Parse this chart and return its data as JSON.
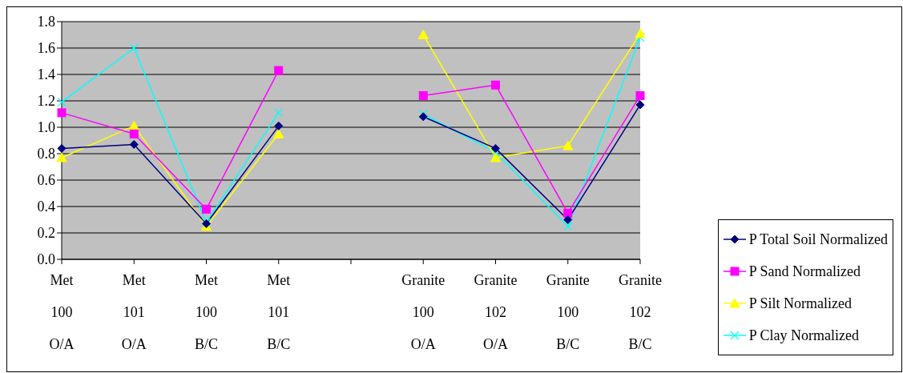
{
  "chart_data": {
    "type": "line",
    "categories": [
      "Met 100 O/A",
      "Met 101 O/A",
      "Met 100 B/C",
      "Met 101 B/C",
      null,
      "Granite 100 O/A",
      "Granite 102 O/A",
      "Granite 100 B/C",
      "Granite 102 B/C"
    ],
    "series": [
      {
        "name": "P Total Soil Normalized",
        "color": "#000080",
        "marker": "diamond",
        "values": [
          0.84,
          0.87,
          0.27,
          1.01,
          null,
          1.08,
          0.84,
          0.3,
          1.17
        ]
      },
      {
        "name": "P Sand Normalized",
        "color": "#ff00ff",
        "marker": "square",
        "values": [
          1.11,
          0.95,
          0.38,
          1.43,
          null,
          1.24,
          1.32,
          0.35,
          1.24
        ]
      },
      {
        "name": "P Silt Normalized",
        "color": "#ffff00",
        "marker": "triangle",
        "values": [
          0.77,
          1.01,
          0.25,
          0.95,
          null,
          1.7,
          0.77,
          0.86,
          1.71
        ]
      },
      {
        "name": "P Clay Normalized",
        "color": "#00ffff",
        "marker": "cross",
        "values": [
          1.19,
          1.6,
          0.28,
          1.11,
          null,
          1.1,
          0.81,
          0.25,
          1.68
        ]
      }
    ],
    "ylim": [
      0,
      1.8
    ],
    "yticks": [
      {
        "value": 0,
        "label": "0.0"
      },
      {
        "value": 0.2,
        "label": "0.2"
      },
      {
        "value": 0.4,
        "label": "0.4"
      },
      {
        "value": 0.6,
        "label": "0.6"
      },
      {
        "value": 0.8,
        "label": "0.8"
      },
      {
        "value": 1,
        "label": "1.0"
      },
      {
        "value": 1.2,
        "label": "1.2"
      },
      {
        "value": 1.4,
        "label": "1.4"
      },
      {
        "value": 1.6,
        "label": "1.6"
      },
      {
        "value": 1.8,
        "label": "1.8"
      }
    ],
    "grid": "y",
    "legend": "bottom right",
    "line_style": "solid"
  }
}
